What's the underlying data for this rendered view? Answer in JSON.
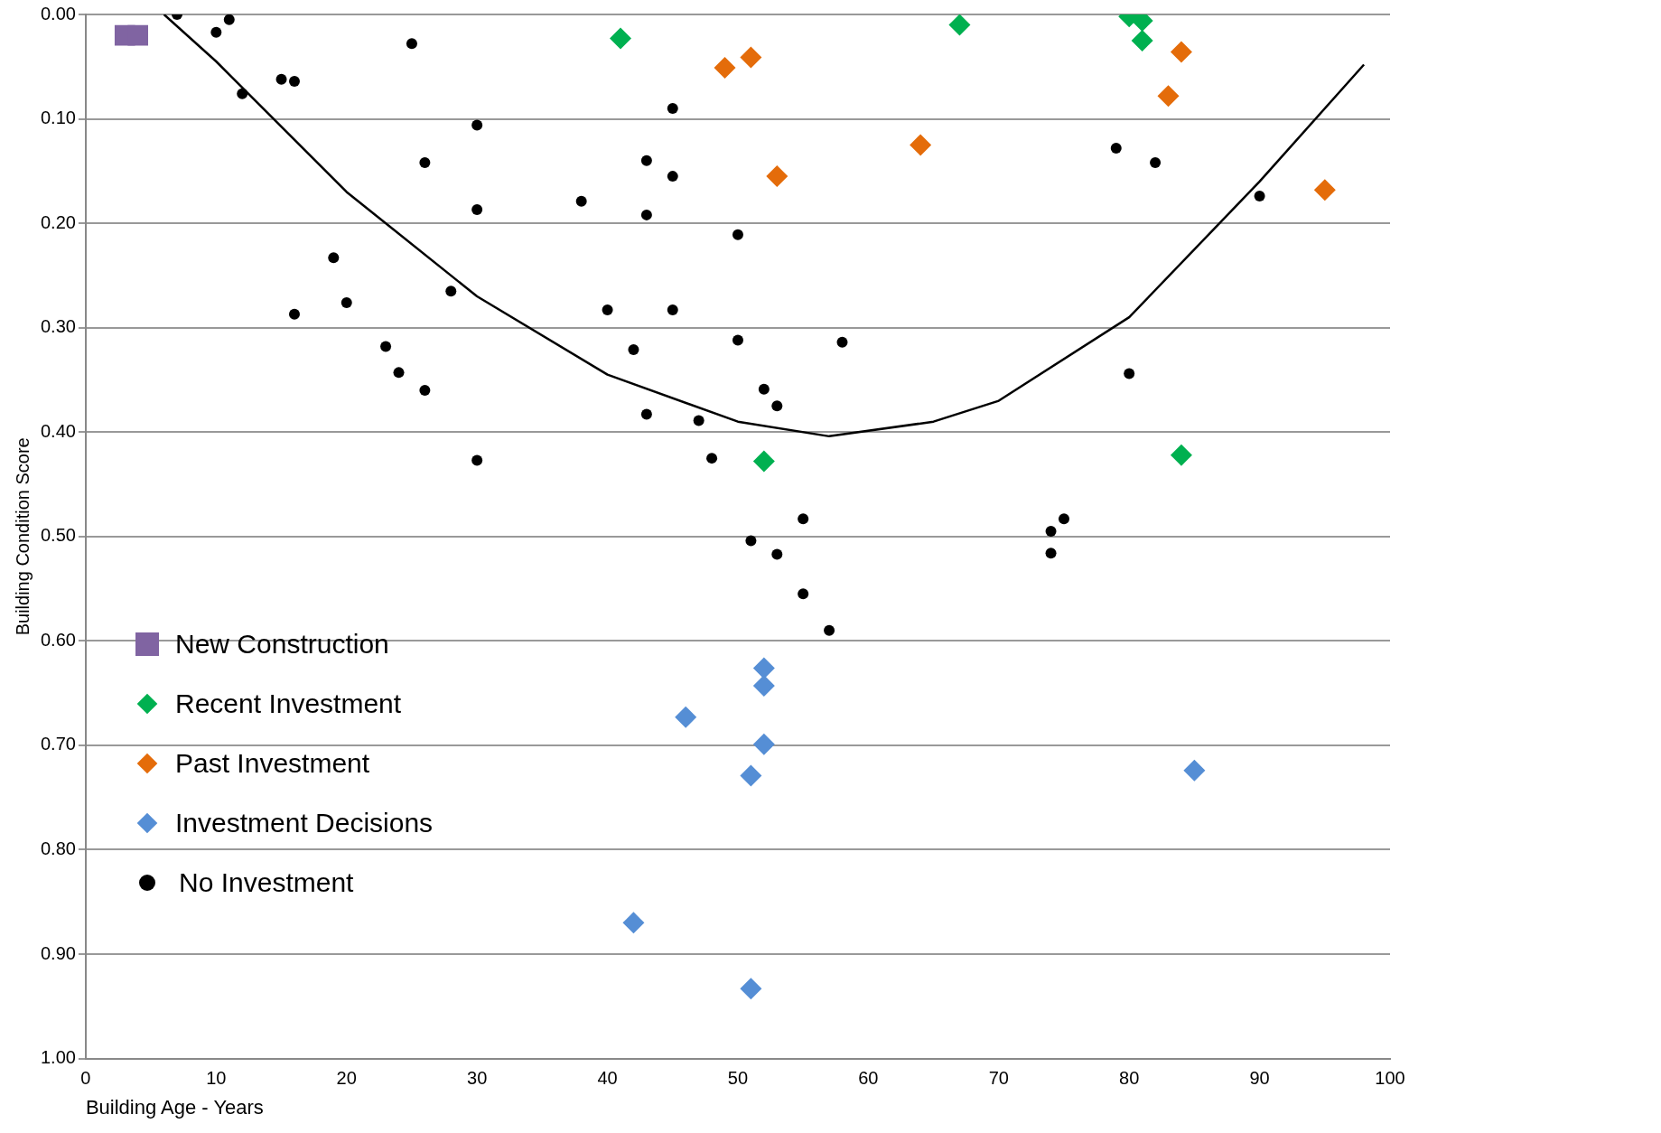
{
  "chart_data": {
    "type": "scatter",
    "ylabel": "Building Condition Score",
    "xlabel": "Building Age - Years",
    "xlim": [
      0,
      100
    ],
    "xticks": [
      0,
      10,
      20,
      30,
      40,
      50,
      60,
      70,
      80,
      90,
      100
    ],
    "ylim": [
      1,
      0
    ],
    "yticks": [
      {
        "value": 0,
        "label": "0.00"
      },
      {
        "value": 0.1,
        "label": "0.10"
      },
      {
        "value": 0.2,
        "label": "0.20"
      },
      {
        "value": 0.3,
        "label": "0.30"
      },
      {
        "value": 0.4,
        "label": "0.40"
      },
      {
        "value": 0.5,
        "label": "0.50"
      },
      {
        "value": 0.6,
        "label": "0.60"
      },
      {
        "value": 0.7,
        "label": "0.70"
      },
      {
        "value": 0.8,
        "label": "0.80"
      },
      {
        "value": 0.9,
        "label": "0.90"
      },
      {
        "value": 1,
        "label": "1.00"
      }
    ],
    "grid": "y",
    "legend": "bottom left",
    "series": [
      {
        "name": "New Construction",
        "color": "#8064a2",
        "marker": "square",
        "x": [
          3,
          4
        ],
        "values": [
          0.02,
          0.02
        ]
      },
      {
        "name": "Recent Investment",
        "color": "#00b050",
        "marker": "diamond",
        "x": [
          41,
          67,
          80,
          81,
          81,
          52,
          84
        ],
        "values": [
          0.023,
          0.01,
          0.002,
          0.006,
          0.025,
          0.428,
          0.422
        ]
      },
      {
        "name": "Past Investment",
        "color": "#e46c0a",
        "marker": "diamond",
        "x": [
          49,
          51,
          53,
          64,
          83,
          84,
          95
        ],
        "values": [
          0.051,
          0.041,
          0.155,
          0.125,
          0.078,
          0.036,
          0.168
        ]
      },
      {
        "name": "Investment Decisions",
        "color": "#558ed5",
        "marker": "diamond",
        "x": [
          52,
          52,
          46,
          52,
          51,
          85,
          42,
          51
        ],
        "values": [
          0.626,
          0.643,
          0.673,
          0.699,
          0.729,
          0.724,
          0.87,
          0.933
        ]
      },
      {
        "name": "No Investment",
        "color": "#000000",
        "marker": "circle",
        "x": [
          7,
          10,
          11,
          12,
          15,
          16,
          25,
          30,
          26,
          30,
          19,
          20,
          16,
          28,
          23,
          24,
          26,
          30,
          38,
          40,
          42,
          43,
          43,
          43,
          45,
          45,
          45,
          47,
          48,
          50,
          50,
          52,
          53,
          51,
          53,
          55,
          55,
          57,
          58,
          74,
          75,
          74,
          79,
          82,
          80,
          90
        ],
        "values": [
          0,
          0.017,
          0.005,
          0.076,
          0.062,
          0.064,
          0.028,
          0.106,
          0.142,
          0.187,
          0.233,
          0.276,
          0.287,
          0.265,
          0.318,
          0.343,
          0.36,
          0.427,
          0.179,
          0.283,
          0.321,
          0.14,
          0.192,
          0.383,
          0.09,
          0.155,
          0.283,
          0.389,
          0.425,
          0.211,
          0.312,
          0.359,
          0.375,
          0.504,
          0.517,
          0.483,
          0.555,
          0.59,
          0.314,
          0.495,
          0.483,
          0.516,
          0.128,
          0.142,
          0.344,
          0.174
        ]
      },
      {
        "type": "line",
        "color": "#000000",
        "marker": "none",
        "line_style": "solid",
        "x": [
          6,
          10,
          20,
          30,
          40,
          50,
          57,
          65,
          70,
          80,
          90,
          98
        ],
        "values": [
          0,
          0.045,
          0.17,
          0.27,
          0.345,
          0.39,
          0.404,
          0.39,
          0.37,
          0.29,
          0.16,
          0.048
        ]
      }
    ]
  }
}
